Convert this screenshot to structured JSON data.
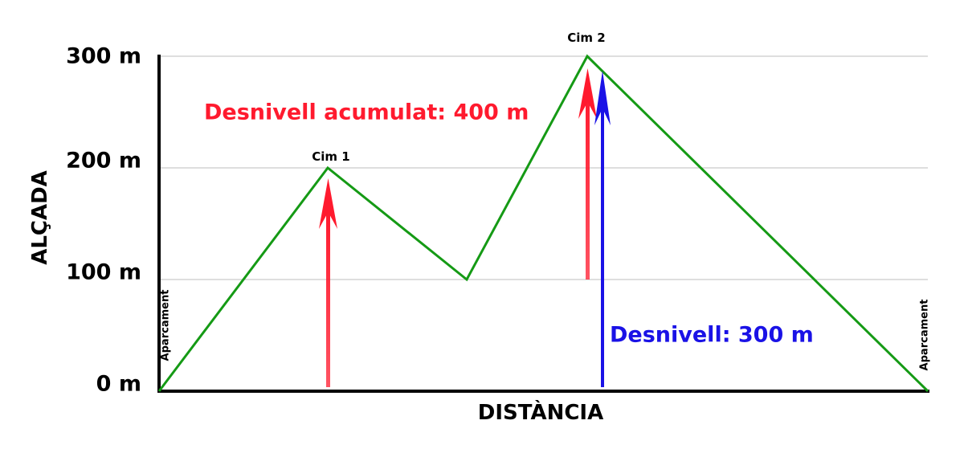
{
  "y_axis": {
    "title": "ALÇADA",
    "ticks": [
      {
        "value": 0,
        "label": "0 m"
      },
      {
        "value": 100,
        "label": "100 m"
      },
      {
        "value": 200,
        "label": "200 m"
      },
      {
        "value": 300,
        "label": "300 m"
      }
    ]
  },
  "x_axis": {
    "title": "DISTÀNCIA"
  },
  "profile_elevations": [
    0,
    200,
    100,
    300,
    0
  ],
  "peaks": [
    {
      "label": "Cim 1",
      "elevation": 200
    },
    {
      "label": "Cim 2",
      "elevation": 300
    }
  ],
  "parking": {
    "start_label": "Aparcament",
    "end_label": "Aparcament"
  },
  "annotations": {
    "cumulative": {
      "text": "Desnivell acumulat: 400 m",
      "color": "#ff1a2e"
    },
    "net": {
      "text": "Desnivell: 300 m",
      "color": "#1a12e6"
    }
  },
  "colors": {
    "profile": "#159a15",
    "grid": "#bdbdbd",
    "axis": "#000000"
  }
}
